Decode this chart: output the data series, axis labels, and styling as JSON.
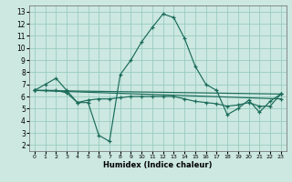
{
  "title": "",
  "xlabel": "Humidex (Indice chaleur)",
  "bg_color": "#cce8e0",
  "grid_color": "#99ccc0",
  "line_color": "#1a6b5a",
  "xlim": [
    -0.5,
    23.5
  ],
  "ylim": [
    1.5,
    13.5
  ],
  "xticks": [
    0,
    1,
    2,
    3,
    4,
    5,
    6,
    7,
    8,
    9,
    10,
    11,
    12,
    13,
    14,
    15,
    16,
    17,
    18,
    19,
    20,
    21,
    22,
    23
  ],
  "yticks": [
    2,
    3,
    4,
    5,
    6,
    7,
    8,
    9,
    10,
    11,
    12,
    13
  ],
  "series": [
    {
      "x": [
        0,
        1,
        2,
        3,
        4,
        5,
        6,
        7,
        8,
        9,
        10,
        11,
        12,
        13,
        14,
        15,
        16,
        17,
        18,
        19,
        20,
        21,
        22,
        23
      ],
      "y": [
        6.5,
        7.0,
        7.5,
        6.5,
        5.5,
        5.5,
        2.8,
        2.3,
        7.8,
        9.0,
        10.5,
        11.7,
        12.8,
        12.5,
        10.8,
        8.5,
        7.0,
        6.5,
        4.5,
        5.0,
        5.7,
        4.7,
        5.6,
        6.2
      ]
    },
    {
      "x": [
        0,
        1,
        2,
        3,
        4,
        5,
        6,
        7,
        8,
        9,
        10,
        11,
        12,
        13,
        14,
        15,
        16,
        17,
        18,
        19,
        20,
        21,
        22,
        23
      ],
      "y": [
        6.5,
        6.5,
        6.5,
        6.3,
        5.5,
        5.7,
        5.8,
        5.8,
        5.9,
        6.0,
        6.0,
        6.0,
        6.0,
        6.0,
        5.8,
        5.6,
        5.5,
        5.4,
        5.2,
        5.3,
        5.5,
        5.2,
        5.2,
        6.2
      ]
    },
    {
      "x": [
        0,
        23
      ],
      "y": [
        6.5,
        6.2
      ]
    },
    {
      "x": [
        0,
        23
      ],
      "y": [
        6.5,
        5.8
      ]
    }
  ]
}
